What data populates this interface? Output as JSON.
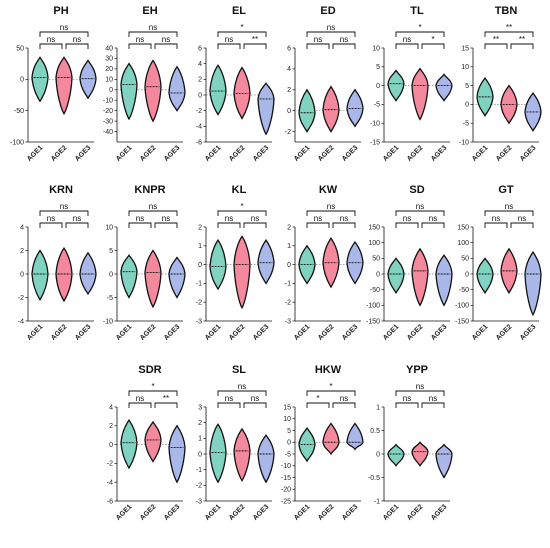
{
  "colors": {
    "AGE1": "#7fd3c0",
    "AGE2": "#f4889c",
    "AGE3": "#a9b8e8",
    "outline": "#111111",
    "zero_line": "#888888"
  },
  "chart_data": [
    {
      "type": "violin",
      "title": "PH",
      "categories": [
        "AGE1",
        "AGE2",
        "AGE3"
      ],
      "ylim": [
        -100,
        50
      ],
      "yticks": [
        -100,
        -50,
        0,
        50
      ],
      "medians": [
        3,
        3,
        1
      ],
      "ranges": [
        [
          -35,
          35
        ],
        [
          -55,
          35
        ],
        [
          -30,
          30
        ]
      ],
      "comparisons": [
        {
          "groups": [
            "AGE1",
            "AGE2"
          ],
          "label": "ns"
        },
        {
          "groups": [
            "AGE2",
            "AGE3"
          ],
          "label": "ns"
        },
        {
          "groups": [
            "AGE1",
            "AGE3"
          ],
          "label": "ns"
        }
      ]
    },
    {
      "type": "violin",
      "title": "EH",
      "categories": [
        "AGE1",
        "AGE2",
        "AGE3"
      ],
      "ylim": [
        -50,
        40
      ],
      "yticks": [
        -40,
        -30,
        -20,
        -10,
        0,
        10,
        20,
        30,
        40
      ],
      "medians": [
        5,
        3,
        -3
      ],
      "ranges": [
        [
          -28,
          25
        ],
        [
          -30,
          28
        ],
        [
          -20,
          22
        ]
      ],
      "comparisons": [
        {
          "groups": [
            "AGE1",
            "AGE2"
          ],
          "label": "ns"
        },
        {
          "groups": [
            "AGE2",
            "AGE3"
          ],
          "label": "ns"
        },
        {
          "groups": [
            "AGE1",
            "AGE3"
          ],
          "label": "ns"
        }
      ]
    },
    {
      "type": "violin",
      "title": "EL",
      "categories": [
        "AGE1",
        "AGE2",
        "AGE3"
      ],
      "ylim": [
        -6,
        6
      ],
      "yticks": [
        -6,
        -4,
        -2,
        0,
        2,
        4,
        6
      ],
      "medians": [
        0.5,
        0.2,
        -0.5
      ],
      "ranges": [
        [
          -2.5,
          3.8
        ],
        [
          -3,
          3.5
        ],
        [
          -5,
          1.5
        ]
      ],
      "comparisons": [
        {
          "groups": [
            "AGE1",
            "AGE2"
          ],
          "label": "ns"
        },
        {
          "groups": [
            "AGE2",
            "AGE3"
          ],
          "label": "**"
        },
        {
          "groups": [
            "AGE1",
            "AGE3"
          ],
          "label": "*"
        }
      ]
    },
    {
      "type": "violin",
      "title": "ED",
      "categories": [
        "AGE1",
        "AGE2",
        "AGE3"
      ],
      "ylim": [
        -3,
        6
      ],
      "yticks": [
        -2,
        0,
        2,
        4,
        6
      ],
      "medians": [
        -0.2,
        0.1,
        0.2
      ],
      "ranges": [
        [
          -2,
          2
        ],
        [
          -2,
          2.3
        ],
        [
          -1.5,
          2
        ]
      ],
      "comparisons": [
        {
          "groups": [
            "AGE1",
            "AGE2"
          ],
          "label": "ns"
        },
        {
          "groups": [
            "AGE2",
            "AGE3"
          ],
          "label": "ns"
        },
        {
          "groups": [
            "AGE1",
            "AGE3"
          ],
          "label": "ns"
        }
      ]
    },
    {
      "type": "violin",
      "title": "TL",
      "categories": [
        "AGE1",
        "AGE2",
        "AGE3"
      ],
      "ylim": [
        -15,
        10
      ],
      "yticks": [
        -15,
        -10,
        -5,
        0,
        5,
        10
      ],
      "medians": [
        0.5,
        0,
        0
      ],
      "ranges": [
        [
          -4,
          4
        ],
        [
          -9,
          4.5
        ],
        [
          -4,
          3
        ]
      ],
      "comparisons": [
        {
          "groups": [
            "AGE1",
            "AGE2"
          ],
          "label": "ns"
        },
        {
          "groups": [
            "AGE2",
            "AGE3"
          ],
          "label": "*"
        },
        {
          "groups": [
            "AGE1",
            "AGE3"
          ],
          "label": "*"
        }
      ]
    },
    {
      "type": "violin",
      "title": "TBN",
      "categories": [
        "AGE1",
        "AGE2",
        "AGE3"
      ],
      "ylim": [
        -10,
        15
      ],
      "yticks": [
        -10,
        -5,
        0,
        5,
        10,
        15
      ],
      "medians": [
        2,
        0,
        -2
      ],
      "ranges": [
        [
          -3,
          7
        ],
        [
          -5,
          5
        ],
        [
          -7,
          3
        ]
      ],
      "comparisons": [
        {
          "groups": [
            "AGE1",
            "AGE2"
          ],
          "label": "**"
        },
        {
          "groups": [
            "AGE2",
            "AGE3"
          ],
          "label": "**"
        },
        {
          "groups": [
            "AGE1",
            "AGE3"
          ],
          "label": "**"
        }
      ]
    },
    {
      "type": "violin",
      "title": "KRN",
      "categories": [
        "AGE1",
        "AGE2",
        "AGE3"
      ],
      "ylim": [
        -4,
        4
      ],
      "yticks": [
        -4,
        -2,
        0,
        2,
        4
      ],
      "medians": [
        0,
        0,
        0
      ],
      "ranges": [
        [
          -2.2,
          2
        ],
        [
          -2.3,
          2.2
        ],
        [
          -1.7,
          1.8
        ]
      ],
      "comparisons": [
        {
          "groups": [
            "AGE1",
            "AGE2"
          ],
          "label": "ns"
        },
        {
          "groups": [
            "AGE2",
            "AGE3"
          ],
          "label": "ns"
        },
        {
          "groups": [
            "AGE1",
            "AGE3"
          ],
          "label": "ns"
        }
      ]
    },
    {
      "type": "violin",
      "title": "KNPR",
      "categories": [
        "AGE1",
        "AGE2",
        "AGE3"
      ],
      "ylim": [
        -10,
        10
      ],
      "yticks": [
        -10,
        -5,
        0,
        5,
        10
      ],
      "medians": [
        0.5,
        0.3,
        0
      ],
      "ranges": [
        [
          -5,
          4
        ],
        [
          -7,
          5
        ],
        [
          -5,
          3.5
        ]
      ],
      "comparisons": [
        {
          "groups": [
            "AGE1",
            "AGE2"
          ],
          "label": "ns"
        },
        {
          "groups": [
            "AGE2",
            "AGE3"
          ],
          "label": "ns"
        },
        {
          "groups": [
            "AGE1",
            "AGE3"
          ],
          "label": "ns"
        }
      ]
    },
    {
      "type": "violin",
      "title": "KL",
      "categories": [
        "AGE1",
        "AGE2",
        "AGE3"
      ],
      "ylim": [
        -3,
        2
      ],
      "yticks": [
        -3,
        -2,
        -1,
        0,
        1,
        2
      ],
      "medians": [
        -0.1,
        0,
        0.1
      ],
      "ranges": [
        [
          -1.3,
          1.3
        ],
        [
          -2.3,
          1.5
        ],
        [
          -1,
          1.3
        ]
      ],
      "comparisons": [
        {
          "groups": [
            "AGE1",
            "AGE2"
          ],
          "label": "ns"
        },
        {
          "groups": [
            "AGE2",
            "AGE3"
          ],
          "label": "ns"
        },
        {
          "groups": [
            "AGE1",
            "AGE3"
          ],
          "label": "*"
        }
      ]
    },
    {
      "type": "violin",
      "title": "KW",
      "categories": [
        "AGE1",
        "AGE2",
        "AGE3"
      ],
      "ylim": [
        -3,
        2
      ],
      "yticks": [
        -3,
        -2,
        -1,
        0,
        1,
        2
      ],
      "medians": [
        0,
        0.1,
        0.1
      ],
      "ranges": [
        [
          -1,
          1
        ],
        [
          -1.2,
          1.4
        ],
        [
          -1,
          1.2
        ]
      ],
      "comparisons": [
        {
          "groups": [
            "AGE1",
            "AGE2"
          ],
          "label": "ns"
        },
        {
          "groups": [
            "AGE2",
            "AGE3"
          ],
          "label": "ns"
        },
        {
          "groups": [
            "AGE1",
            "AGE3"
          ],
          "label": "ns"
        }
      ]
    },
    {
      "type": "violin",
      "title": "SD",
      "categories": [
        "AGE1",
        "AGE2",
        "AGE3"
      ],
      "ylim": [
        -150,
        150
      ],
      "yticks": [
        -150,
        -100,
        -50,
        0,
        50,
        100,
        150
      ],
      "medians": [
        0,
        10,
        0
      ],
      "ranges": [
        [
          -60,
          50
        ],
        [
          -100,
          80
        ],
        [
          -100,
          60
        ]
      ],
      "comparisons": [
        {
          "groups": [
            "AGE1",
            "AGE2"
          ],
          "label": "ns"
        },
        {
          "groups": [
            "AGE2",
            "AGE3"
          ],
          "label": "ns"
        },
        {
          "groups": [
            "AGE1",
            "AGE3"
          ],
          "label": "ns"
        }
      ]
    },
    {
      "type": "violin",
      "title": "GT",
      "categories": [
        "AGE1",
        "AGE2",
        "AGE3"
      ],
      "ylim": [
        -150,
        150
      ],
      "yticks": [
        -150,
        -100,
        -50,
        0,
        50,
        100,
        150
      ],
      "medians": [
        0,
        10,
        0
      ],
      "ranges": [
        [
          -60,
          50
        ],
        [
          -60,
          80
        ],
        [
          -130,
          70
        ]
      ],
      "comparisons": [
        {
          "groups": [
            "AGE1",
            "AGE2"
          ],
          "label": "ns"
        },
        {
          "groups": [
            "AGE2",
            "AGE3"
          ],
          "label": "ns"
        },
        {
          "groups": [
            "AGE1",
            "AGE3"
          ],
          "label": "ns"
        }
      ]
    },
    {
      "type": "violin",
      "title": "SDR",
      "categories": [
        "AGE1",
        "AGE2",
        "AGE3"
      ],
      "ylim": [
        -6,
        4
      ],
      "yticks": [
        -6,
        -4,
        -2,
        0,
        2,
        4
      ],
      "medians": [
        0.2,
        0.5,
        -0.3
      ],
      "ranges": [
        [
          -2.5,
          2.6
        ],
        [
          -1.8,
          2.4
        ],
        [
          -4,
          2
        ]
      ],
      "comparisons": [
        {
          "groups": [
            "AGE1",
            "AGE2"
          ],
          "label": "ns"
        },
        {
          "groups": [
            "AGE2",
            "AGE3"
          ],
          "label": "**"
        },
        {
          "groups": [
            "AGE1",
            "AGE3"
          ],
          "label": "*"
        }
      ]
    },
    {
      "type": "violin",
      "title": "SL",
      "categories": [
        "AGE1",
        "AGE2",
        "AGE3"
      ],
      "ylim": [
        -3,
        3
      ],
      "yticks": [
        -3,
        -2,
        -1,
        0,
        1,
        2,
        3
      ],
      "medians": [
        0.1,
        0.2,
        0
      ],
      "ranges": [
        [
          -1.8,
          1.9
        ],
        [
          -1.7,
          1.6
        ],
        [
          -1.8,
          1.2
        ]
      ],
      "comparisons": [
        {
          "groups": [
            "AGE1",
            "AGE2"
          ],
          "label": "ns"
        },
        {
          "groups": [
            "AGE2",
            "AGE3"
          ],
          "label": "ns"
        },
        {
          "groups": [
            "AGE1",
            "AGE3"
          ],
          "label": "ns"
        }
      ]
    },
    {
      "type": "violin",
      "title": "HKW",
      "categories": [
        "AGE1",
        "AGE2",
        "AGE3"
      ],
      "ylim": [
        -25,
        15
      ],
      "yticks": [
        -25,
        -20,
        -15,
        -10,
        -5,
        0,
        5,
        10,
        15
      ],
      "medians": [
        -1,
        0,
        0
      ],
      "ranges": [
        [
          -8,
          6
        ],
        [
          -5,
          8
        ],
        [
          -3,
          8
        ]
      ],
      "comparisons": [
        {
          "groups": [
            "AGE1",
            "AGE2"
          ],
          "label": "*"
        },
        {
          "groups": [
            "AGE2",
            "AGE3"
          ],
          "label": "ns"
        },
        {
          "groups": [
            "AGE1",
            "AGE3"
          ],
          "label": "*"
        }
      ]
    },
    {
      "type": "violin",
      "title": "YPP",
      "categories": [
        "AGE1",
        "AGE2",
        "AGE3"
      ],
      "ylim": [
        -1,
        1
      ],
      "yticks": [
        -1,
        -0.5,
        0,
        0.5,
        1
      ],
      "medians": [
        0,
        0.05,
        0
      ],
      "ranges": [
        [
          -0.25,
          0.2
        ],
        [
          -0.25,
          0.25
        ],
        [
          -0.5,
          0.2
        ]
      ],
      "comparisons": [
        {
          "groups": [
            "AGE1",
            "AGE2"
          ],
          "label": "ns"
        },
        {
          "groups": [
            "AGE2",
            "AGE3"
          ],
          "label": "ns"
        },
        {
          "groups": [
            "AGE1",
            "AGE3"
          ],
          "label": "ns"
        }
      ]
    }
  ]
}
